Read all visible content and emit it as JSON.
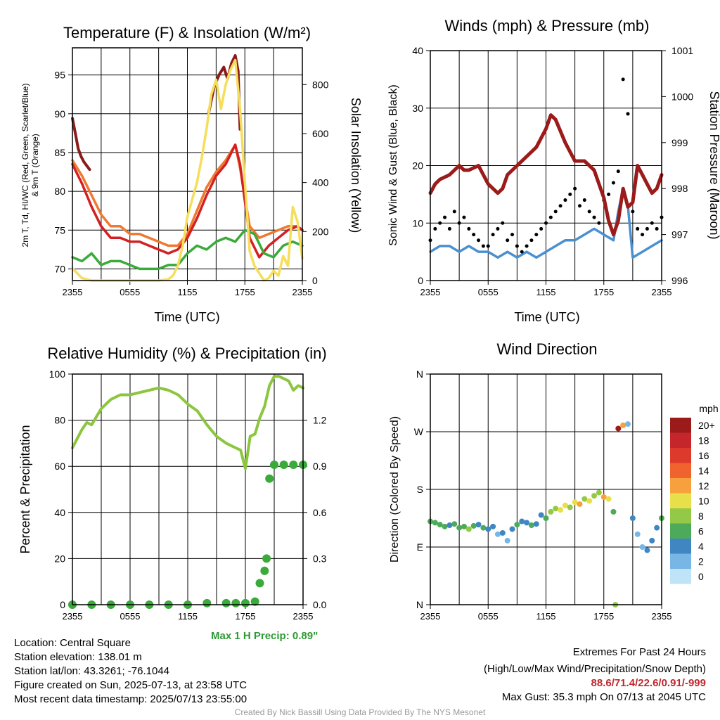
{
  "panels": {
    "temperature": {
      "title": "Temperature (F) & Insolation (W/m²)",
      "ylabel_lines": [
        "2m T, Td, HI/WC (Red, Green, Scarlet/Blue)",
        "& 9m T (Orange)"
      ],
      "y2label": "Solar Insolation (Yellow)",
      "xlabel": "Time (UTC)"
    },
    "winds": {
      "title": "Winds (mph) & Pressure (mb)",
      "ylabel": "Sonic Wind & Gust (Blue, Black)",
      "y2label": "Station Pressure (Maroon)",
      "xlabel": "Time (UTC)"
    },
    "humidity": {
      "title": "Relative Humidity (%) & Precipitation (in)",
      "ylabel": "Percent & Precipitation",
      "max_precip": "Max 1 H Precip: 0.89\""
    },
    "direction": {
      "title": "Wind Direction",
      "ylabel": "Direction (Colored By Speed)",
      "legend_title": "mph"
    }
  },
  "footer": {
    "location": "Location: Central Square",
    "elevation": "Station elevation: 138.01 m",
    "latlon": "Station lat/lon: 43.3261; -76.1044",
    "created": "Figure created on Sun, 2025-07-13, at 23:58 UTC",
    "recent": "Most recent data timestamp: 2025/07/13 23:55:00",
    "extremes_title": "Extremes For Past 24 Hours",
    "extremes_desc": "(High/Low/Max Wind/Precipitation/Snow Depth)",
    "extremes_values": "88.6/71.4/22.6/0.91/-999",
    "max_gust": "Max Gust: 35.3 mph On 07/13 at 2045 UTC",
    "credit": "Created By Nick Bassill Using Data Provided By The NYS Mesonet"
  },
  "chart_data": [
    {
      "id": "temperature",
      "type": "line",
      "title": "Temperature (F) & Insolation (W/m²)",
      "xlabel": "Time (UTC)",
      "x_ticks": [
        "2355",
        "0555",
        "1155",
        "1755",
        "2355"
      ],
      "x_range_hours": [
        0,
        24
      ],
      "ylim": [
        68.5,
        98.5
      ],
      "y_ticks": [
        70,
        75,
        80,
        85,
        90,
        95
      ],
      "y2lim": [
        0,
        950
      ],
      "y2_ticks": [
        0,
        200,
        400,
        600,
        800
      ],
      "grid": true,
      "series": [
        {
          "color": "#8b1a1a",
          "axis": "y",
          "x": [
            0,
            0.3,
            0.6,
            0.9,
            1.2,
            1.5,
            1.8
          ],
          "values": [
            89.4,
            87.5,
            85.5,
            84.5,
            83.8,
            83.3,
            82.8
          ]
        },
        {
          "color": "#8b1a1a",
          "axis": "y",
          "x": [
            14.2,
            14.8,
            15.3,
            15.8,
            16.2,
            16.6,
            17.0,
            17.3,
            17.5
          ],
          "values": [
            90.0,
            93.5,
            95.0,
            96.0,
            94.5,
            96.5,
            97.5,
            95.5,
            88.0
          ]
        },
        {
          "color": "#f07830",
          "axis": "y",
          "x": [
            0,
            1,
            2,
            3,
            4,
            5,
            6,
            7,
            8,
            9,
            10,
            11,
            12,
            13,
            14,
            15,
            16,
            17,
            17.5,
            18.5,
            19.5,
            20.5,
            21.5,
            22.5,
            23.5,
            24
          ],
          "values": [
            84.0,
            82.0,
            79.5,
            77.0,
            75.5,
            75.5,
            74.5,
            74.5,
            74.0,
            73.5,
            73.0,
            73.0,
            74.5,
            77.5,
            80.5,
            82.5,
            84.0,
            86.0,
            83.0,
            75.5,
            74.0,
            74.5,
            75.0,
            75.5,
            75.5,
            75.0
          ]
        },
        {
          "color": "#d42020",
          "axis": "y",
          "x": [
            0,
            1,
            2,
            3,
            4,
            5,
            6,
            7,
            8,
            9,
            10,
            11,
            12,
            13,
            14,
            15,
            16,
            17,
            17.5,
            18.5,
            19.5,
            20.5,
            21.5,
            22.5,
            23.5,
            24
          ],
          "values": [
            83.5,
            81.0,
            78.0,
            75.5,
            74.0,
            74.0,
            73.5,
            73.5,
            73.0,
            72.5,
            72.0,
            72.5,
            74.0,
            76.5,
            79.5,
            82.0,
            83.5,
            86.0,
            83.5,
            74.0,
            71.5,
            73.0,
            74.0,
            75.0,
            75.5,
            75.0
          ]
        },
        {
          "color": "#3aaa3a",
          "axis": "y",
          "x": [
            0,
            1,
            2,
            3,
            4,
            5,
            6,
            7,
            8,
            9,
            10,
            11,
            12,
            13,
            14,
            15,
            16,
            17,
            18,
            19,
            20,
            21,
            22,
            23,
            24
          ],
          "values": [
            71.5,
            71.0,
            72.0,
            70.5,
            71.0,
            71.0,
            70.5,
            70.0,
            70.0,
            70.0,
            70.5,
            70.5,
            72.0,
            73.0,
            72.5,
            73.5,
            74.0,
            73.5,
            75.0,
            74.5,
            72.0,
            71.5,
            73.0,
            73.5,
            73.0
          ]
        },
        {
          "color": "#f5de5c",
          "axis": "y2",
          "x": [
            0,
            1,
            2,
            3,
            4,
            5,
            6,
            7,
            8,
            9,
            10,
            10.5,
            11,
            11.5,
            12,
            12.5,
            13,
            13.5,
            14,
            14.5,
            15,
            15.5,
            16,
            16.5,
            17,
            17.5,
            18,
            18.5,
            19,
            19.5,
            20,
            20.5,
            21,
            21.5,
            22,
            22.5,
            23,
            23.5,
            24
          ],
          "values": [
            50,
            10,
            0,
            0,
            0,
            0,
            0,
            0,
            0,
            0,
            5,
            20,
            60,
            140,
            260,
            330,
            400,
            500,
            620,
            760,
            820,
            700,
            800,
            860,
            900,
            700,
            400,
            120,
            60,
            30,
            0,
            10,
            40,
            20,
            100,
            60,
            300,
            240,
            90
          ]
        }
      ]
    },
    {
      "id": "winds",
      "type": "line",
      "title": "Winds (mph) & Pressure (mb)",
      "xlabel": "Time (UTC)",
      "x_ticks": [
        "2355",
        "0555",
        "1155",
        "1755",
        "2355"
      ],
      "x_range_hours": [
        0,
        24
      ],
      "ylim": [
        0,
        40
      ],
      "y_ticks": [
        0,
        10,
        20,
        30,
        40
      ],
      "y2lim": [
        996,
        1001
      ],
      "y2_ticks": [
        996,
        997,
        998,
        999,
        1000,
        1001
      ],
      "grid": true,
      "series": [
        {
          "color": "#4a90d0",
          "axis": "y",
          "name_hint": "wind",
          "x": [
            0,
            1,
            2,
            3,
            4,
            5,
            6,
            7,
            8,
            9,
            10,
            11,
            12,
            13,
            14,
            15,
            16,
            17,
            18,
            19,
            19.5,
            20,
            20.5,
            21,
            22,
            23,
            24
          ],
          "values": [
            5,
            6,
            6,
            5,
            6,
            5,
            5,
            4,
            5,
            4,
            5,
            4,
            5,
            6,
            7,
            7,
            8,
            9,
            8,
            7,
            12,
            16,
            13,
            4,
            5,
            6,
            7
          ]
        },
        {
          "color": "#000000",
          "axis": "y",
          "type": "scatter",
          "x": [
            0,
            0.5,
            1,
            1.5,
            2,
            2.5,
            3,
            3.5,
            4,
            4.5,
            5,
            5.5,
            6,
            6.5,
            7,
            7.5,
            8,
            8.5,
            9,
            9.5,
            10,
            10.5,
            11,
            11.5,
            12,
            12.5,
            13,
            13.5,
            14,
            14.5,
            15,
            15.5,
            16,
            16.5,
            17,
            17.5,
            18,
            18.5,
            19,
            19.5,
            20,
            20.5,
            21,
            21.5,
            22,
            22.5,
            23,
            23.5,
            24
          ],
          "values": [
            7,
            9,
            10,
            11,
            9,
            12,
            10,
            11,
            9,
            8,
            7,
            6,
            6,
            8,
            9,
            10,
            7,
            8,
            6,
            5,
            6,
            7,
            8,
            9,
            10,
            11,
            12,
            13,
            14,
            15,
            16,
            13,
            14,
            12,
            11,
            10,
            14,
            15,
            17,
            19,
            35,
            29,
            12,
            9,
            8,
            9,
            10,
            9,
            11
          ]
        },
        {
          "color": "#9b1b1b",
          "axis": "y2",
          "x": [
            0,
            0.5,
            1,
            2,
            3,
            3.5,
            4,
            5,
            6,
            7,
            7.5,
            8,
            9,
            10,
            11,
            12,
            12.5,
            13,
            14,
            15,
            16,
            17,
            17.5,
            18,
            18.5,
            19,
            19.5,
            20,
            20.5,
            21,
            21.5,
            22,
            22.5,
            23,
            23.5,
            24
          ],
          "values": [
            997.9,
            998.1,
            998.2,
            998.3,
            998.5,
            998.4,
            998.4,
            998.5,
            998.1,
            997.9,
            998.0,
            998.3,
            998.5,
            998.7,
            998.9,
            999.3,
            999.6,
            999.5,
            999.0,
            998.6,
            998.6,
            998.4,
            998.1,
            997.8,
            997.3,
            997.0,
            997.3,
            998.0,
            997.6,
            997.7,
            998.5,
            998.3,
            998.1,
            997.9,
            998.0,
            998.3
          ]
        }
      ]
    },
    {
      "id": "humidity",
      "type": "line",
      "title": "Relative Humidity (%) & Precipitation (in)",
      "ylabel": "Percent & Precipitation",
      "x_ticks": [
        "2355",
        "0555",
        "1155",
        "1755",
        "2355"
      ],
      "x_range_hours": [
        0,
        24
      ],
      "ylim": [
        0,
        100
      ],
      "y_ticks": [
        0,
        20,
        40,
        60,
        80,
        100
      ],
      "y2lim": [
        0,
        1.5
      ],
      "y2_ticks": [
        "0.0",
        "0.3",
        "0.6",
        "0.9",
        "1.2"
      ],
      "grid": true,
      "series": [
        {
          "color": "#8cc63f",
          "axis": "y",
          "x": [
            0,
            0.5,
            1,
            1.5,
            2,
            3,
            4,
            5,
            6,
            7,
            8,
            9,
            10,
            11,
            12,
            13,
            14,
            15,
            16,
            17,
            17.5,
            18,
            18.5,
            19,
            19.5,
            20,
            20.5,
            21,
            21.5,
            22,
            22.5,
            23,
            23.5,
            24
          ],
          "values": [
            68,
            72,
            76,
            79,
            78,
            85,
            89,
            91,
            91,
            92,
            93,
            94,
            93,
            91,
            87,
            84,
            78,
            73,
            70,
            68,
            67,
            59,
            73,
            74,
            81,
            86,
            95,
            99,
            99,
            98,
            97,
            93,
            95,
            94
          ]
        },
        {
          "color": "#3aaa3a",
          "axis": "y2",
          "type": "scatter",
          "x": [
            0,
            2,
            4,
            6,
            8,
            10,
            12,
            14,
            16,
            17,
            18,
            19,
            19.5,
            20,
            20.2,
            20.5,
            21,
            22,
            23,
            24
          ],
          "values": [
            0,
            0,
            0,
            0,
            0,
            0,
            0,
            0.01,
            0.01,
            0.01,
            0.01,
            0.02,
            0.14,
            0.22,
            0.3,
            0.82,
            0.91,
            0.91,
            0.91,
            0.91
          ]
        }
      ]
    },
    {
      "id": "direction",
      "type": "scatter",
      "title": "Wind Direction",
      "ylabel": "Direction (Colored By Speed)",
      "x_ticks": [
        "2355",
        "0555",
        "1155",
        "1755",
        "2355"
      ],
      "x_range_hours": [
        0,
        24
      ],
      "y_ticks": [
        "N",
        "E",
        "S",
        "W",
        "N"
      ],
      "ylim_degrees": [
        0,
        360
      ],
      "grid": true,
      "legend": {
        "title": "mph",
        "placement": "right",
        "labels": [
          "20+",
          "18",
          "16",
          "14",
          "12",
          "10",
          "8",
          "6",
          "4",
          "2",
          "0"
        ],
        "colors": [
          "#9b1b1b",
          "#c4262c",
          "#dd3a2b",
          "#f0622e",
          "#f7a03e",
          "#e8e04a",
          "#93c947",
          "#4daa5a",
          "#3f86c2",
          "#78b6e6",
          "#bfe3f7"
        ]
      },
      "x": [
        0,
        0.5,
        1,
        1.5,
        2,
        2.5,
        3,
        3.5,
        4,
        4.5,
        5,
        5.5,
        6,
        6.5,
        7,
        7.5,
        8,
        8.5,
        9,
        9.5,
        10,
        10.5,
        11,
        11.5,
        12,
        12.5,
        13,
        13.5,
        14,
        14.5,
        15,
        15.5,
        16,
        16.5,
        17,
        17.5,
        18,
        18.5,
        19,
        19.2,
        19.5,
        20,
        20.5,
        21,
        21.5,
        22,
        22.5,
        23,
        23.5,
        24
      ],
      "values": [
        130,
        128,
        125,
        122,
        124,
        126,
        120,
        122,
        118,
        123,
        125,
        120,
        118,
        122,
        110,
        112,
        100,
        118,
        125,
        130,
        128,
        124,
        126,
        140,
        135,
        145,
        150,
        148,
        155,
        152,
        160,
        157,
        165,
        162,
        170,
        175,
        168,
        165,
        145,
        0,
        275,
        280,
        282,
        135,
        110,
        90,
        85,
        100,
        120,
        135
      ],
      "speeds": [
        5,
        6,
        5,
        6,
        4,
        5,
        6,
        5,
        7,
        6,
        4,
        5,
        3,
        4,
        2,
        3,
        2,
        4,
        5,
        4,
        3,
        5,
        4,
        3,
        6,
        7,
        8,
        9,
        10,
        8,
        9,
        11,
        8,
        10,
        7,
        8,
        12,
        10,
        6,
        7,
        20,
        12,
        2,
        3,
        2,
        2,
        3,
        4,
        3,
        6
      ]
    }
  ]
}
